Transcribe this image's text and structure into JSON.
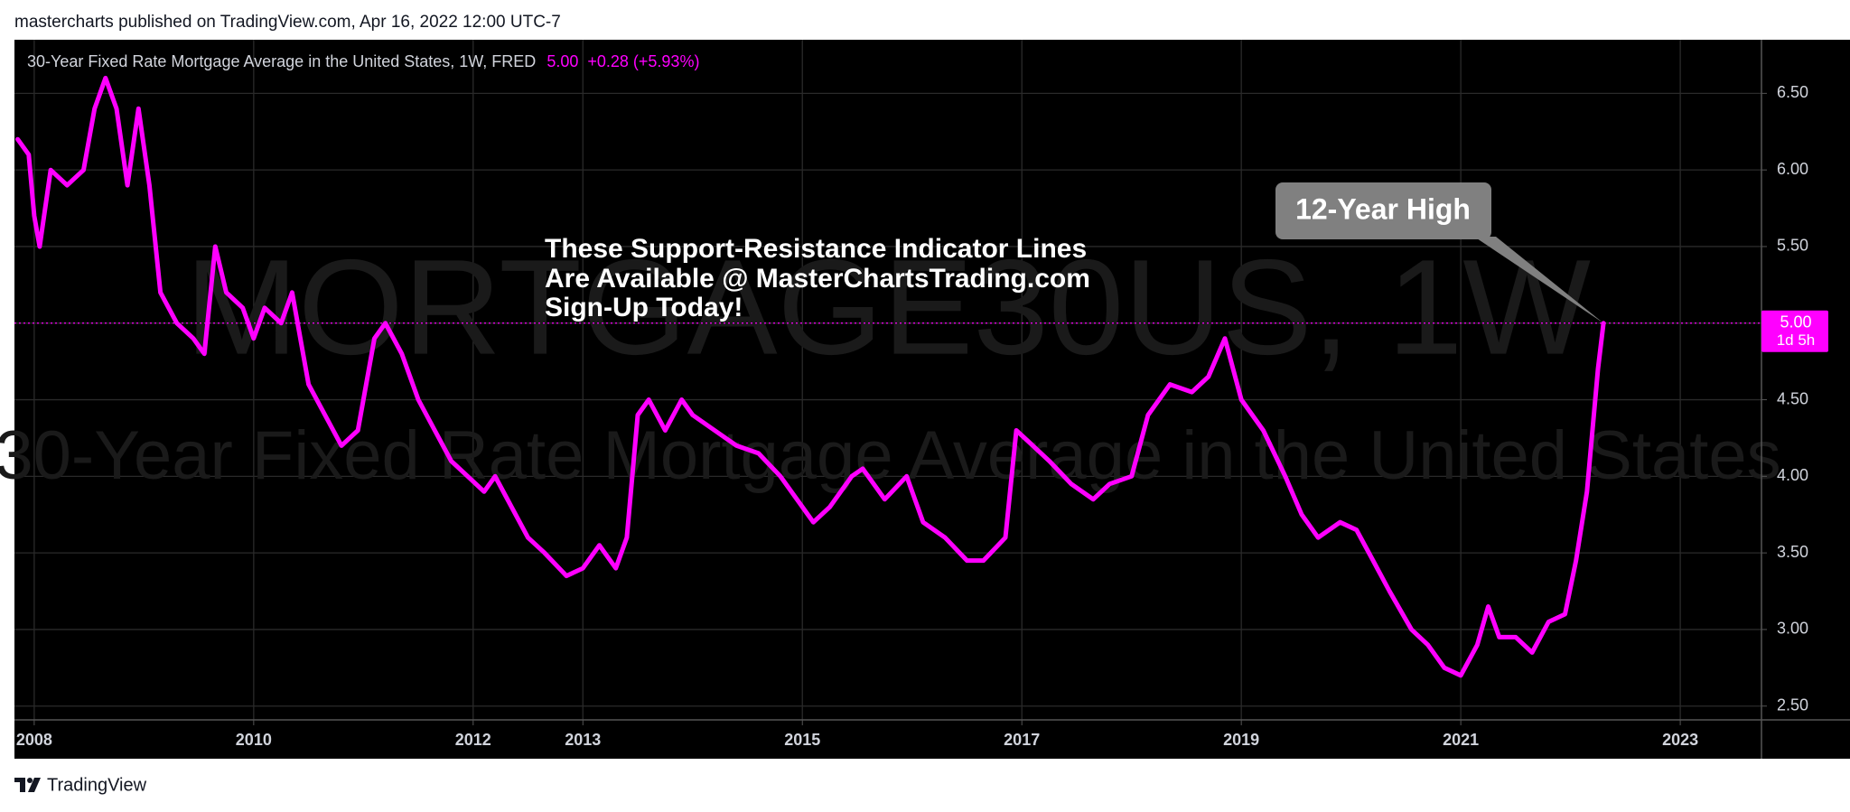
{
  "header": {
    "published": "mastercharts published on TradingView.com, Apr 16, 2022 12:00 UTC-7"
  },
  "footer": {
    "brand": "TradingView"
  },
  "chart_data": {
    "type": "line",
    "title": "30-Year Fixed Rate Mortgage Average in the United States, 1W, FRED",
    "legend_value": "5.00",
    "legend_change": "+0.28 (+5.93%)",
    "watermark": [
      "MORTGAGE30US, 1W",
      "30-Year Fixed Rate Mortgage Average in the United States"
    ],
    "annotations": [
      "These Support-Resistance Indicator Lines",
      "Are Available @ MasterChartsTrading.com",
      "Sign-Up Today!"
    ],
    "callout": "12-Year High",
    "last_price": {
      "value": 5,
      "label": "5.00"
    },
    "countdown": "1d 5h",
    "x": [
      2007.85,
      2007.95,
      2008.0,
      2008.05,
      2008.15,
      2008.3,
      2008.45,
      2008.55,
      2008.65,
      2008.75,
      2008.85,
      2008.95,
      2009.05,
      2009.15,
      2009.3,
      2009.45,
      2009.55,
      2009.65,
      2009.75,
      2009.9,
      2010.0,
      2010.1,
      2010.25,
      2010.35,
      2010.5,
      2010.65,
      2010.8,
      2010.95,
      2011.1,
      2011.2,
      2011.35,
      2011.5,
      2011.65,
      2011.8,
      2011.95,
      2012.1,
      2012.2,
      2012.35,
      2012.5,
      2012.65,
      2012.85,
      2013.0,
      2013.15,
      2013.3,
      2013.4,
      2013.5,
      2013.6,
      2013.75,
      2013.9,
      2014.0,
      2014.2,
      2014.4,
      2014.6,
      2014.8,
      2014.95,
      2015.1,
      2015.25,
      2015.45,
      2015.55,
      2015.75,
      2015.95,
      2016.1,
      2016.3,
      2016.5,
      2016.65,
      2016.85,
      2016.95,
      2017.1,
      2017.25,
      2017.45,
      2017.65,
      2017.8,
      2018.0,
      2018.15,
      2018.35,
      2018.55,
      2018.7,
      2018.85,
      2019.0,
      2019.2,
      2019.4,
      2019.55,
      2019.7,
      2019.9,
      2020.05,
      2020.2,
      2020.35,
      2020.55,
      2020.7,
      2020.85,
      2021.0,
      2021.15,
      2021.25,
      2021.35,
      2021.5,
      2021.65,
      2021.8,
      2021.95,
      2022.05,
      2022.15,
      2022.25,
      2022.3
    ],
    "series": [
      {
        "name": "MORTGAGE30US",
        "color": "#ff00ff",
        "values": [
          6.2,
          6.1,
          5.7,
          5.5,
          6.0,
          5.9,
          6.0,
          6.4,
          6.6,
          6.4,
          5.9,
          6.4,
          5.9,
          5.2,
          5.0,
          4.9,
          4.8,
          5.5,
          5.2,
          5.1,
          4.9,
          5.1,
          5.0,
          5.2,
          4.6,
          4.4,
          4.2,
          4.3,
          4.9,
          5.0,
          4.8,
          4.5,
          4.3,
          4.1,
          4.0,
          3.9,
          4.0,
          3.8,
          3.6,
          3.5,
          3.35,
          3.4,
          3.55,
          3.4,
          3.6,
          4.4,
          4.5,
          4.3,
          4.5,
          4.4,
          4.3,
          4.2,
          4.15,
          4.0,
          3.85,
          3.7,
          3.8,
          4.0,
          4.05,
          3.85,
          4.0,
          3.7,
          3.6,
          3.45,
          3.45,
          3.6,
          4.3,
          4.2,
          4.1,
          3.95,
          3.85,
          3.95,
          4.0,
          4.4,
          4.6,
          4.55,
          4.65,
          4.9,
          4.5,
          4.3,
          4.0,
          3.75,
          3.6,
          3.7,
          3.65,
          3.45,
          3.25,
          3.0,
          2.9,
          2.75,
          2.7,
          2.9,
          3.15,
          2.95,
          2.95,
          2.85,
          3.05,
          3.1,
          3.45,
          3.9,
          4.7,
          5.0
        ]
      }
    ],
    "xlim": [
      2007.82,
      2023.74
    ],
    "xticks": [
      2008,
      2010,
      2012,
      2013,
      2015,
      2017,
      2019,
      2021,
      2023
    ],
    "ylim": [
      2.41,
      6.85
    ],
    "yticks": [
      {
        "value": 2.5,
        "label": "2.50"
      },
      {
        "value": 3,
        "label": "3.00"
      },
      {
        "value": 3.5,
        "label": "3.50"
      },
      {
        "value": 4,
        "label": "4.00"
      },
      {
        "value": 4.5,
        "label": "4.50"
      },
      {
        "value": 5,
        "label": "5.00"
      },
      {
        "value": 5.5,
        "label": "5.50"
      },
      {
        "value": 6,
        "label": "6.00"
      },
      {
        "value": 6.5,
        "label": "6.50"
      }
    ],
    "grid": true
  }
}
